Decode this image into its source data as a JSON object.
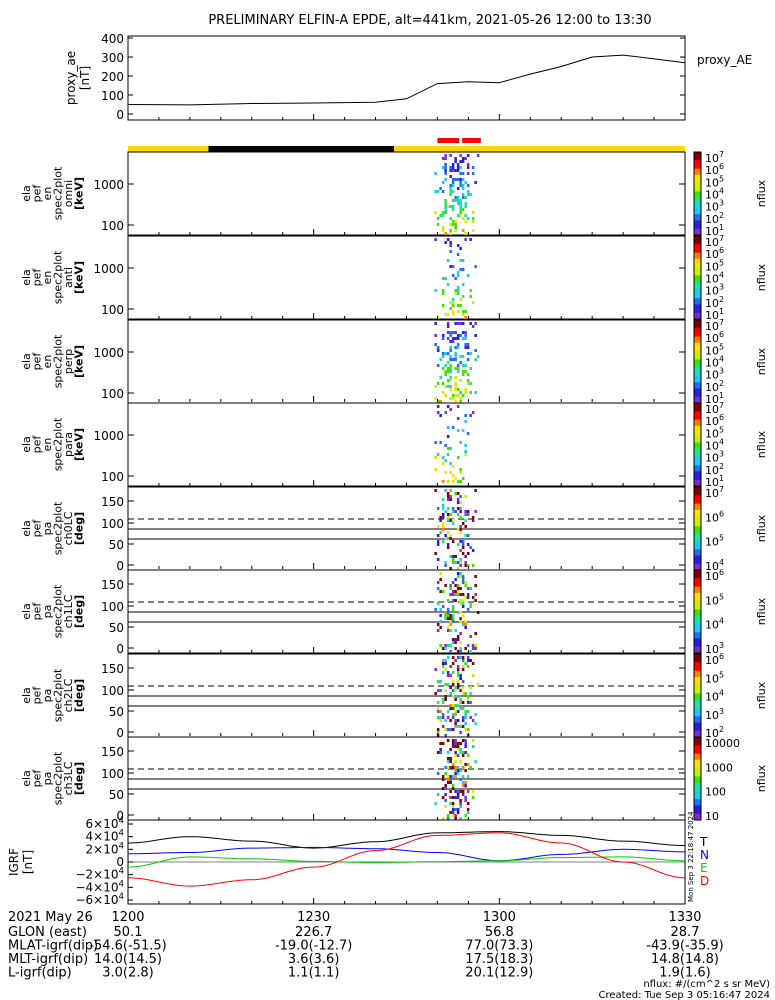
{
  "title": "PRELIMINARY ELFIN-A EPDE, alt=441km, 2021-05-26 12:00 to 13:30",
  "proxy_panel": {
    "ylabel": [
      "proxy_ae",
      "[nT]"
    ],
    "legend": "proxy_AE",
    "yticks": [
      "400",
      "300",
      "200",
      "100",
      "0"
    ]
  },
  "spectro_panels": [
    {
      "ylabel": [
        "ela",
        "pef",
        "en",
        "spec2plot",
        "omni",
        "[keV]"
      ],
      "yticks": [
        "1000",
        "100"
      ],
      "cbar_label": "nflux"
    },
    {
      "ylabel": [
        "ela",
        "pef",
        "en",
        "spec2plot",
        "anti",
        "[keV]"
      ],
      "yticks": [
        "1000",
        "100"
      ],
      "cbar_label": "nflux"
    },
    {
      "ylabel": [
        "ela",
        "pef",
        "en",
        "spec2plot",
        "perp",
        "[keV]"
      ],
      "yticks": [
        "1000",
        "100"
      ],
      "cbar_label": "nflux"
    },
    {
      "ylabel": [
        "ela",
        "pef",
        "en",
        "spec2plot",
        "para",
        "[keV]"
      ],
      "yticks": [
        "1000",
        "100"
      ],
      "cbar_label": "nflux"
    },
    {
      "ylabel": [
        "ela",
        "pef",
        "pa",
        "spec2plot",
        "ch0LC",
        "[deg]"
      ],
      "yticks": [
        "150",
        "100",
        "50",
        "0"
      ],
      "cbar_label": "nflux"
    },
    {
      "ylabel": [
        "ela",
        "pef",
        "pa",
        "spec2plot",
        "ch1LC",
        "[deg]"
      ],
      "yticks": [
        "150",
        "100",
        "50",
        "0"
      ],
      "cbar_label": "nflux"
    },
    {
      "ylabel": [
        "ela",
        "pef",
        "pa",
        "spec2plot",
        "ch2LC",
        "[deg]"
      ],
      "yticks": [
        "150",
        "100",
        "50",
        "0"
      ],
      "cbar_label": "nflux"
    },
    {
      "ylabel": [
        "ela",
        "pef",
        "pa",
        "spec2plot",
        "ch3LC",
        "[deg]"
      ],
      "yticks": [
        "150",
        "100",
        "50",
        "0"
      ],
      "cbar_label": "nflux"
    }
  ],
  "colorbar_ticks": [
    [
      "10^7",
      "10^6",
      "10^5",
      "10^4",
      "10^3",
      "10^2",
      "10^1"
    ],
    [
      "10^7",
      "10^6",
      "10^5",
      "10^4",
      "10^3",
      "10^2",
      "10^1"
    ],
    [
      "10^7",
      "10^6",
      "10^5",
      "10^4",
      "10^3",
      "10^2",
      "10^1"
    ],
    [
      "10^7",
      "10^6",
      "10^5",
      "10^4",
      "10^3",
      "10^2",
      "10^1"
    ],
    [
      "10^7",
      "10^6",
      "10^5",
      "10^4"
    ],
    [
      "10^6",
      "10^5",
      "10^4",
      "10^3"
    ],
    [
      "10^6",
      "10^5",
      "10^4",
      "10^3",
      "10^2"
    ],
    [
      "10000",
      "1000",
      "100",
      "10"
    ]
  ],
  "igrf_panel": {
    "ylabel": [
      "IGRF",
      "[nT]"
    ],
    "yticks": [
      "6×10^4",
      "4×10^4",
      "2×10^4",
      "0",
      "−2×10^4",
      "−4×10^4",
      "−6×10^4"
    ],
    "legend": [
      {
        "label": "T",
        "color": "#000000"
      },
      {
        "label": "N",
        "color": "#0000ff"
      },
      {
        "label": "E",
        "color": "#00cc00"
      },
      {
        "label": "D",
        "color": "#ff0000"
      }
    ],
    "side_text": "Mon Sep 3 22:18:47 2024"
  },
  "xaxis": {
    "date_label": "2021 May 26",
    "ticks": [
      "1200",
      "1230",
      "1300",
      "1330"
    ],
    "rows": [
      {
        "label": "GLON (east)",
        "values": [
          "50.1",
          "226.7",
          "56.8",
          "28.7"
        ]
      },
      {
        "label": "MLAT-igrf(dip)",
        "values": [
          "-54.6(-51.5)",
          "-19.0(-12.7)",
          "77.0(73.3)",
          "-43.9(-35.9)"
        ]
      },
      {
        "label": "MLT-igrf(dip)",
        "values": [
          "14.0(14.5)",
          "3.6(3.6)",
          "17.5(18.3)",
          "14.8(14.8)"
        ]
      },
      {
        "label": "L-igrf(dip)",
        "values": [
          "3.0(2.8)",
          "1.1(1.1)",
          "20.1(12.9)",
          "1.9(1.6)"
        ]
      }
    ]
  },
  "footer": {
    "units": "nflux: #/(cm^2 s sr MeV)",
    "created": "Created: Tue Sep  3 05:16:47 2024"
  },
  "colors": {
    "bar_day": "#ffd700",
    "bar_night": "#000000",
    "science_zone": "#ff0000"
  },
  "chart_data": [
    {
      "type": "line",
      "name": "proxy_AE",
      "x": [
        0,
        10,
        20,
        30,
        40,
        45,
        50,
        55,
        60,
        65,
        70,
        75,
        80,
        85,
        90
      ],
      "y": [
        50,
        48,
        55,
        58,
        62,
        80,
        160,
        170,
        165,
        210,
        250,
        300,
        310,
        290,
        270
      ],
      "ylim": [
        0,
        400
      ],
      "xlim": [
        0,
        90
      ]
    },
    {
      "type": "bar",
      "name": "orbit phase bar",
      "segments": [
        {
          "from": 0,
          "to": 13,
          "kind": "day"
        },
        {
          "from": 13,
          "to": 43,
          "kind": "night"
        },
        {
          "from": 43,
          "to": 90,
          "kind": "day"
        }
      ],
      "science_zones": [
        [
          50,
          53.5
        ],
        [
          54,
          57
        ]
      ]
    },
    {
      "type": "heatmap",
      "name": "ela pef spectrograms",
      "time_window_min": [
        49.5,
        56.5
      ],
      "energy_range_keV": [
        50,
        5000
      ],
      "pitch_angle_range_deg": [
        0,
        180
      ],
      "loss_cone_lines_deg": [
        65,
        90,
        115
      ]
    },
    {
      "type": "line",
      "name": "IGRF field components",
      "x": [
        0,
        10,
        20,
        30,
        40,
        50,
        60,
        70,
        80,
        90
      ],
      "series": [
        {
          "name": "T",
          "values": [
            30000,
            40000,
            33000,
            22000,
            32000,
            46000,
            48000,
            42000,
            33000,
            26000
          ]
        },
        {
          "name": "N",
          "values": [
            13000,
            15000,
            22000,
            23000,
            21000,
            15000,
            2000,
            12000,
            20000,
            16000
          ]
        },
        {
          "name": "E",
          "values": [
            -8000,
            8000,
            5000,
            1000,
            -1000,
            500,
            2000,
            7000,
            8000,
            2000
          ]
        },
        {
          "name": "D",
          "values": [
            -25000,
            -38000,
            -28000,
            -8000,
            18000,
            42000,
            46000,
            30000,
            0,
            -25000
          ]
        }
      ],
      "ylim": [
        -60000,
        60000
      ],
      "xlim": [
        0,
        90
      ]
    }
  ]
}
